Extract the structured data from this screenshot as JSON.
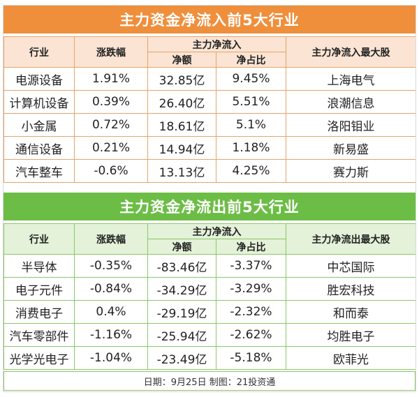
{
  "inflow": {
    "title": "主力资金净流入前5大行业",
    "headers": {
      "industry": "行业",
      "change": "涨跌幅",
      "group": "主力净流入",
      "net": "净额",
      "ratio": "净占比",
      "top_stock": "主力净流入最大股"
    },
    "rows": [
      {
        "industry": "电源设备",
        "change": "1.91%",
        "net": "32.85亿",
        "ratio": "9.45%",
        "stock": "上海电气"
      },
      {
        "industry": "计算机设备",
        "change": "0.39%",
        "net": "26.40亿",
        "ratio": "5.51%",
        "stock": "浪潮信息"
      },
      {
        "industry": "小金属",
        "change": "0.72%",
        "net": "18.61亿",
        "ratio": "5.1%",
        "stock": "洛阳钼业"
      },
      {
        "industry": "通信设备",
        "change": "0.21%",
        "net": "14.94亿",
        "ratio": "1.18%",
        "stock": "新易盛"
      },
      {
        "industry": "汽车整车",
        "change": "-0.6%",
        "net": "13.13亿",
        "ratio": "4.25%",
        "stock": "赛力斯"
      }
    ]
  },
  "outflow": {
    "title": "主力资金净流出前5大行业",
    "headers": {
      "industry": "行业",
      "change": "涨跌幅",
      "group": "主力净流入",
      "net": "净额",
      "ratio": "净占比",
      "top_stock": "主力净流出最大股"
    },
    "rows": [
      {
        "industry": "半导体",
        "change": "-0.35%",
        "net": "-83.46亿",
        "ratio": "-3.37%",
        "stock": "中芯国际"
      },
      {
        "industry": "电子元件",
        "change": "-0.84%",
        "net": "-34.29亿",
        "ratio": "-3.29%",
        "stock": "胜宏科技"
      },
      {
        "industry": "消费电子",
        "change": "0.4%",
        "net": "-29.19亿",
        "ratio": "-2.32%",
        "stock": "和而泰"
      },
      {
        "industry": "汽车零部件",
        "change": "-1.16%",
        "net": "-25.94亿",
        "ratio": "-2.62%",
        "stock": "均胜电子"
      },
      {
        "industry": "光学光电子",
        "change": "-1.04%",
        "net": "-23.49亿",
        "ratio": "-5.18%",
        "stock": "欧菲光"
      }
    ]
  },
  "footer": "日期：9月25日 制图：21投资通",
  "colors": {
    "inflow_accent": "#ef8f3c",
    "outflow_accent": "#6cbd45"
  }
}
